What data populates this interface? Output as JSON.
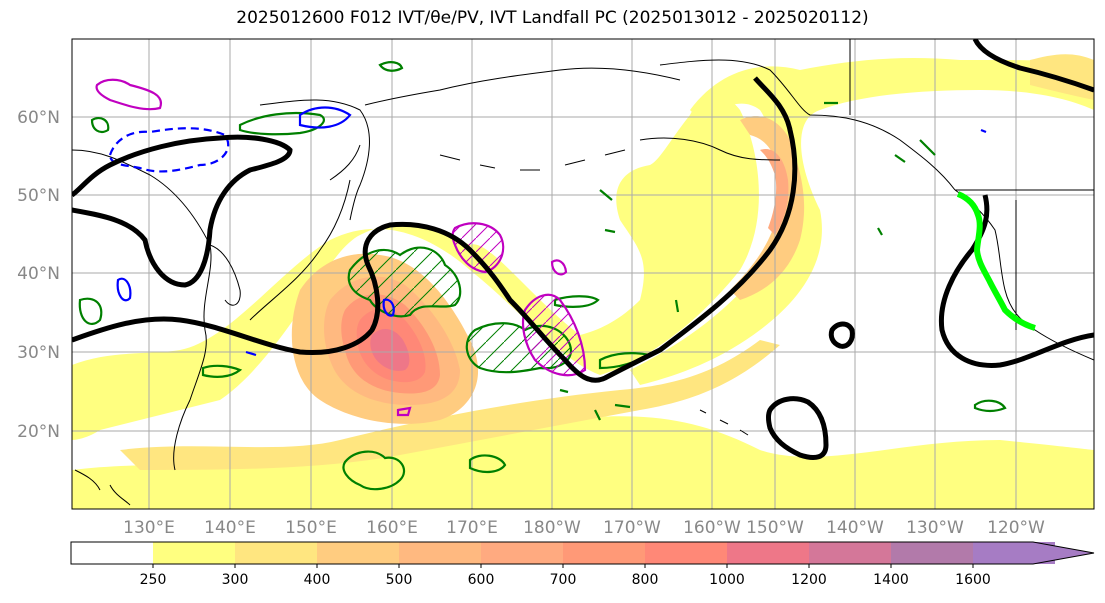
{
  "title": "2025012600 F012 IVT/θe/PV, IVT Landfall PC (2025013012 - 2025020112)",
  "map": {
    "lat_labels": [
      "60°N",
      "50°N",
      "40°N",
      "30°N",
      "20°N"
    ],
    "lon_labels": [
      "130°E",
      "140°E",
      "150°E",
      "160°E",
      "170°E",
      "180°W",
      "170°W",
      "160°W",
      "150°W",
      "140°W",
      "130°W",
      "120°W"
    ],
    "gridlines": true
  },
  "colorbar": {
    "ticks": [
      "250",
      "300",
      "400",
      "500",
      "600",
      "700",
      "800",
      "1000",
      "1200",
      "1400",
      "1600"
    ],
    "colors": [
      "#ffffff",
      "#ffff80",
      "#ffe680",
      "#ffcc80",
      "#ffb980",
      "#ffaa80",
      "#ff9977",
      "#ff8877",
      "#ee7788",
      "#d47799",
      "#b27aaa",
      "#a67cc4"
    ],
    "extend": "max"
  },
  "styles": {
    "ocean": "#ffffff",
    "coast": "#000000",
    "pv_contour": "#000000",
    "theta_e_contour": "#008000",
    "negative_contour": "#0000ff",
    "hatched_contour": "#c000c0",
    "landfall_line": "#00ff00"
  }
}
